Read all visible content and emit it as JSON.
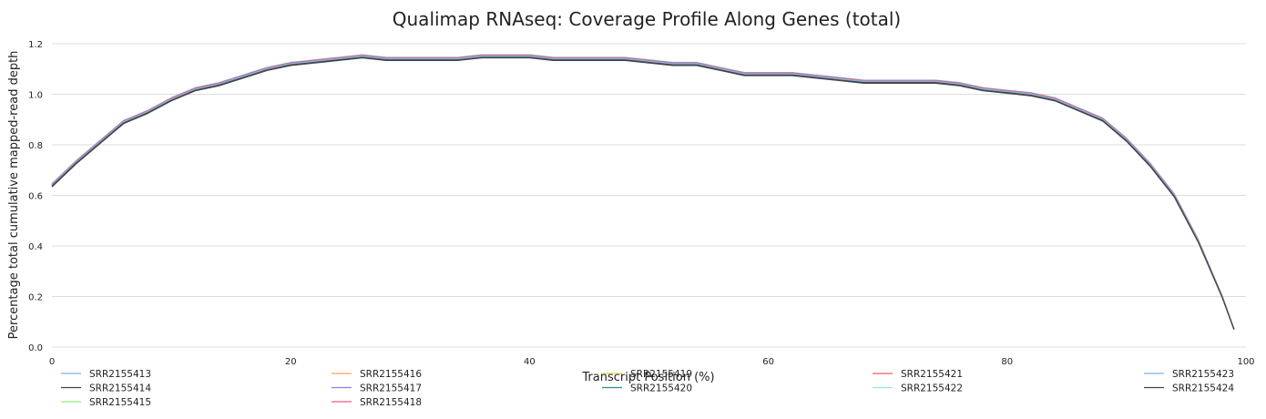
{
  "chart_data": {
    "type": "line",
    "title": "Qualimap RNAseq: Coverage Profile Along Genes (total)",
    "xlabel": "Transcript Position (%)",
    "ylabel": "Percentage total cumulative mapped-read depth",
    "xlim": [
      0,
      100
    ],
    "ylim": [
      0,
      1.2
    ],
    "xticks": [
      "0",
      "20",
      "40",
      "60",
      "80",
      "100"
    ],
    "yticks": [
      "0.0",
      "0.2",
      "0.4",
      "0.6",
      "0.8",
      "1.0",
      "1.2"
    ],
    "grid": true,
    "legend_position": "bottom",
    "profile": {
      "x": [
        0,
        2,
        4,
        6,
        8,
        10,
        12,
        14,
        16,
        18,
        20,
        22,
        24,
        26,
        28,
        30,
        32,
        34,
        36,
        38,
        40,
        42,
        44,
        46,
        48,
        50,
        52,
        54,
        56,
        58,
        60,
        62,
        64,
        66,
        68,
        70,
        72,
        74,
        76,
        78,
        80,
        82,
        84,
        86,
        88,
        90,
        92,
        94,
        96,
        98,
        99
      ],
      "y": [
        0.64,
        0.73,
        0.81,
        0.89,
        0.93,
        0.98,
        1.02,
        1.04,
        1.07,
        1.1,
        1.12,
        1.13,
        1.14,
        1.15,
        1.14,
        1.14,
        1.14,
        1.14,
        1.15,
        1.15,
        1.15,
        1.14,
        1.14,
        1.14,
        1.14,
        1.13,
        1.12,
        1.12,
        1.1,
        1.08,
        1.08,
        1.08,
        1.07,
        1.06,
        1.05,
        1.05,
        1.05,
        1.05,
        1.04,
        1.02,
        1.01,
        1.0,
        0.98,
        0.94,
        0.9,
        0.82,
        0.72,
        0.6,
        0.42,
        0.2,
        0.07
      ]
    },
    "series": [
      {
        "name": "SRR2155413",
        "color": "#7cb5ec",
        "offset": 0.006
      },
      {
        "name": "SRR2155414",
        "color": "#434348",
        "offset": -0.006
      },
      {
        "name": "SRR2155415",
        "color": "#90ed7d",
        "offset": 0.003
      },
      {
        "name": "SRR2155416",
        "color": "#f7a35c",
        "offset": 0.001
      },
      {
        "name": "SRR2155417",
        "color": "#8085e9",
        "offset": -0.002
      },
      {
        "name": "SRR2155418",
        "color": "#f15c80",
        "offset": 0.002
      },
      {
        "name": "SRR2155419",
        "color": "#e4d354",
        "offset": -0.001
      },
      {
        "name": "SRR2155420",
        "color": "#2b908f",
        "offset": 0.0
      },
      {
        "name": "SRR2155421",
        "color": "#f45b5b",
        "offset": 0.004
      },
      {
        "name": "SRR2155422",
        "color": "#91e8e1",
        "offset": -0.003
      },
      {
        "name": "SRR2155423",
        "color": "#7cb5ec",
        "offset": 0.001
      },
      {
        "name": "SRR2155424",
        "color": "#434348",
        "offset": -0.004
      }
    ]
  }
}
